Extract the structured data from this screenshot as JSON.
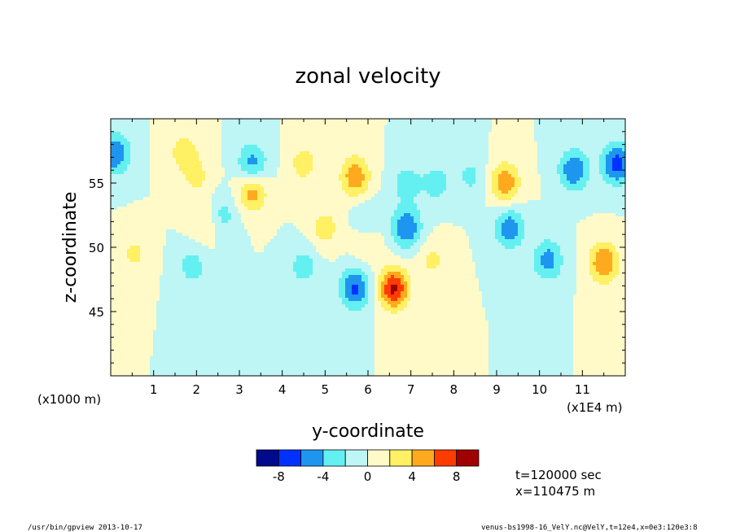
{
  "chart_data": {
    "type": "heatmap",
    "subtype": "filled-contour",
    "title": "zonal velocity",
    "xlabel": "y-coordinate",
    "ylabel": "z-coordinate",
    "x_unit_note": "(x1000 m)",
    "x_scale_note": "(x1E4 m)",
    "xlim": [
      0,
      12
    ],
    "ylim": [
      40,
      60
    ],
    "x_ticks": [
      1,
      2,
      3,
      4,
      5,
      6,
      7,
      8,
      9,
      10,
      11
    ],
    "y_ticks": [
      45,
      50,
      55
    ],
    "colorbar": {
      "levels": [
        -10,
        -8,
        -6,
        -4,
        -2,
        0,
        2,
        4,
        6,
        8,
        10
      ],
      "tick_labels": [
        "-8",
        "-4",
        "0",
        "4",
        "8"
      ],
      "tick_values": [
        -8,
        -4,
        0,
        4,
        8
      ],
      "colors": [
        "#000a8c",
        "#0032ff",
        "#1e96f0",
        "#64f0f0",
        "#bef5f5",
        "#fffac8",
        "#fff064",
        "#ffaa1e",
        "#ff3c00",
        "#a00000"
      ]
    },
    "features": [
      {
        "y": 1.7,
        "z": 57.5,
        "value": 3.0
      },
      {
        "y": 2.0,
        "z": 55.5,
        "value": 2.5
      },
      {
        "y": 2.2,
        "z": 52.0,
        "value": 2.5
      },
      {
        "y": 3.3,
        "z": 56.5,
        "value": -5.0
      },
      {
        "y": 3.3,
        "z": 54.3,
        "value": 5.0
      },
      {
        "y": 2.6,
        "z": 52.5,
        "value": -3.0
      },
      {
        "y": 0.55,
        "z": 49.5,
        "value": 2.5
      },
      {
        "y": 4.5,
        "z": 56.5,
        "value": 3.0
      },
      {
        "y": 5.7,
        "z": 55.5,
        "value": 5.5
      },
      {
        "y": 5.0,
        "z": 51.5,
        "value": 3.0
      },
      {
        "y": 6.0,
        "z": 50.5,
        "value": 2.5
      },
      {
        "y": 5.7,
        "z": 46.8,
        "value": -6.5
      },
      {
        "y": 6.6,
        "z": 46.8,
        "value": 8.5
      },
      {
        "y": 6.0,
        "z": 52.0,
        "value": -2.5
      },
      {
        "y": 6.9,
        "z": 51.5,
        "value": -6.0
      },
      {
        "y": 6.9,
        "z": 55.0,
        "value": -3.0
      },
      {
        "y": 7.6,
        "z": 55.0,
        "value": -3.0
      },
      {
        "y": 1.9,
        "z": 48.5,
        "value": -3.0
      },
      {
        "y": 4.5,
        "z": 48.5,
        "value": -3.0
      },
      {
        "y": 9.2,
        "z": 55.0,
        "value": 5.5
      },
      {
        "y": 9.3,
        "z": 51.5,
        "value": -5.5
      },
      {
        "y": 10.2,
        "z": 49.0,
        "value": -5.0
      },
      {
        "y": 11.5,
        "z": 48.8,
        "value": 6.0
      },
      {
        "y": 10.8,
        "z": 56.0,
        "value": -6.0
      },
      {
        "y": 11.8,
        "z": 56.5,
        "value": -7.0
      },
      {
        "y": 0.1,
        "z": 57.3,
        "value": -6.0
      },
      {
        "y": 8.4,
        "z": 55.5,
        "value": -2.5
      },
      {
        "y": 7.5,
        "z": 49.0,
        "value": 2.5
      }
    ]
  },
  "annotations": {
    "time": "t=120000 sec",
    "position": "x=110475 m",
    "program": "/usr/bin/gpview   2013-10-17",
    "source": "venus-bs1998-16_VelY.nc@VelY,t=12e4,x=0e3:120e3:8"
  }
}
